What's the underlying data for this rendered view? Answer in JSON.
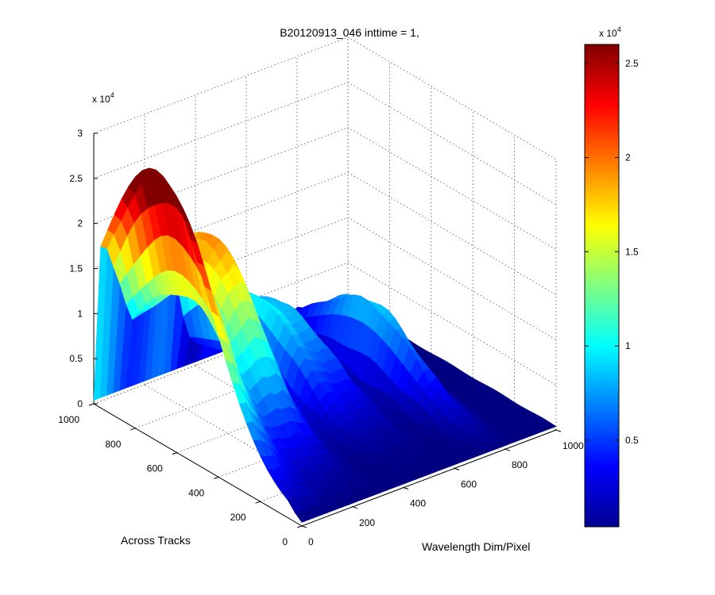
{
  "chart_data": {
    "type": "surface3d",
    "title": "B20120913_046 inttime = 1,",
    "xlabel": "Wavelength Dim/Pixel",
    "ylabel": "Across Tracks",
    "zlabel": "",
    "xlim": [
      0,
      1000
    ],
    "ylim": [
      0,
      1000
    ],
    "zlim": [
      0,
      30000
    ],
    "x_ticks": [
      0,
      200,
      400,
      600,
      800,
      1000
    ],
    "y_ticks": [
      0,
      200,
      400,
      600,
      800,
      1000
    ],
    "z_ticks": [
      "0",
      "0.5",
      "1",
      "1.5",
      "2",
      "2.5",
      "3"
    ],
    "z_exponent": "x 10",
    "z_exponent_power": "4",
    "grid": true,
    "colormap": "jet",
    "colorbar": {
      "ticks": [
        "0.5",
        "1",
        "1.5",
        "2",
        "2.5"
      ],
      "tick_values": [
        5000,
        10000,
        15000,
        20000,
        25000
      ],
      "range": [
        400,
        26000
      ],
      "exponent": "x 10",
      "exponent_power": "4"
    },
    "peaks": [
      {
        "wavelength": 0,
        "across": 700,
        "value": 30000
      },
      {
        "wavelength": 200,
        "across": 720,
        "value": 12000
      },
      {
        "wavelength": 280,
        "across": 760,
        "value": 16000
      },
      {
        "wavelength": 450,
        "across": 760,
        "value": 10000
      },
      {
        "wavelength": 560,
        "across": 760,
        "value": 8000
      },
      {
        "wavelength": 760,
        "across": 600,
        "value": 9000
      }
    ]
  }
}
